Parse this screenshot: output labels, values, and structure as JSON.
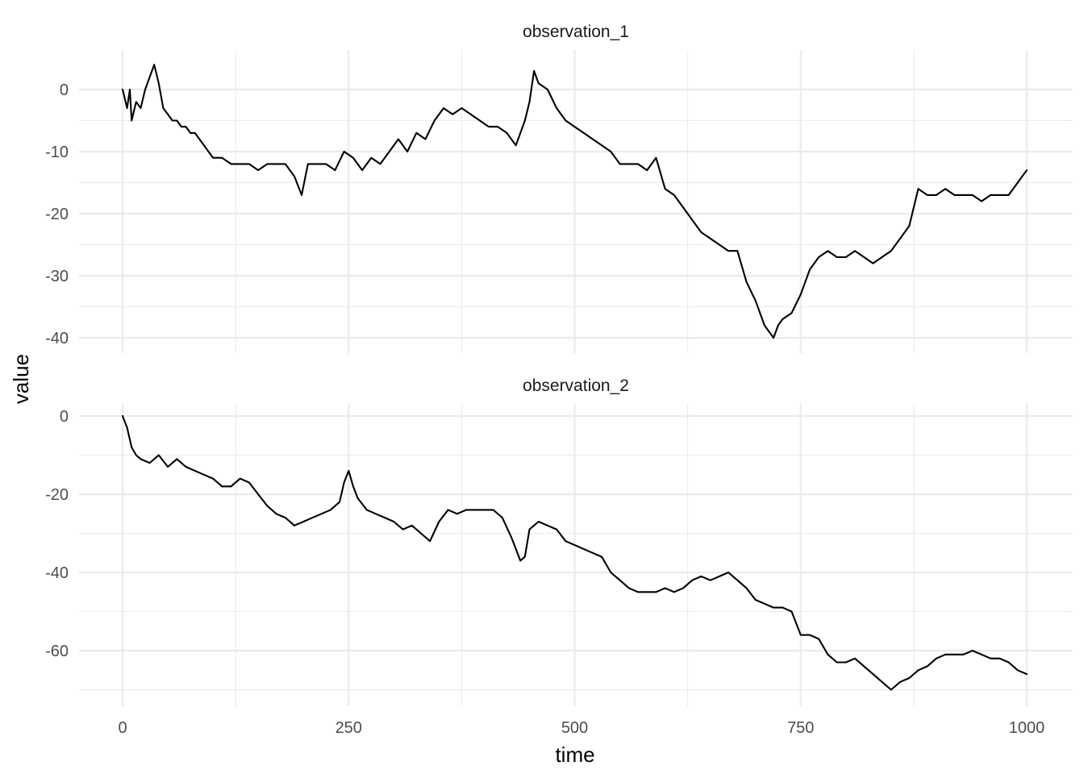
{
  "chart_data": {
    "type": "line",
    "xlabel": "time",
    "ylabel": "value",
    "xlim": [
      0,
      1000
    ],
    "x_ticks": [
      0,
      250,
      500,
      750,
      1000
    ],
    "grid": true,
    "legend": "none",
    "panels": [
      {
        "title": "observation_1",
        "ylim": [
          -42,
          6
        ],
        "y_ticks": [
          0,
          -10,
          -20,
          -30,
          -40
        ],
        "series": [
          {
            "color": "#000000",
            "x": [
              0,
              5,
              8,
              10,
              15,
              20,
              25,
              30,
              35,
              40,
              45,
              50,
              55,
              60,
              65,
              70,
              75,
              80,
              85,
              90,
              100,
              110,
              120,
              130,
              140,
              150,
              160,
              170,
              180,
              190,
              198,
              205,
              215,
              225,
              235,
              245,
              255,
              265,
              275,
              285,
              295,
              305,
              315,
              325,
              335,
              345,
              355,
              365,
              375,
              385,
              395,
              405,
              415,
              425,
              435,
              445,
              450,
              455,
              460,
              470,
              480,
              490,
              500,
              510,
              520,
              530,
              540,
              550,
              560,
              570,
              580,
              590,
              600,
              610,
              620,
              630,
              640,
              650,
              660,
              670,
              680,
              690,
              700,
              710,
              720,
              725,
              730,
              740,
              750,
              760,
              770,
              780,
              790,
              800,
              810,
              820,
              830,
              840,
              850,
              860,
              870,
              880,
              890,
              900,
              910,
              920,
              930,
              940,
              950,
              960,
              970,
              980,
              990,
              1000
            ],
            "y": [
              0,
              -3,
              0,
              -5,
              -2,
              -3,
              0,
              2,
              4,
              1,
              -3,
              -4,
              -5,
              -5,
              -6,
              -6,
              -7,
              -7,
              -8,
              -9,
              -11,
              -11,
              -12,
              -12,
              -12,
              -13,
              -12,
              -12,
              -12,
              -14,
              -17,
              -12,
              -12,
              -12,
              -13,
              -10,
              -11,
              -13,
              -11,
              -12,
              -10,
              -8,
              -10,
              -7,
              -8,
              -5,
              -3,
              -4,
              -3,
              -4,
              -5,
              -6,
              -6,
              -7,
              -9,
              -5,
              -2,
              3,
              1,
              0,
              -3,
              -5,
              -6,
              -7,
              -8,
              -9,
              -10,
              -12,
              -12,
              -12,
              -13,
              -11,
              -16,
              -17,
              -19,
              -21,
              -23,
              -24,
              -25,
              -26,
              -26,
              -31,
              -34,
              -38,
              -40,
              -38,
              -37,
              -36,
              -33,
              -29,
              -27,
              -26,
              -27,
              -27,
              -26,
              -27,
              -28,
              -27,
              -26,
              -24,
              -22,
              -16,
              -17,
              -17,
              -16,
              -17,
              -17,
              -17,
              -18,
              -17,
              -17,
              -17,
              -15,
              -13
            ]
          }
        ]
      },
      {
        "title": "observation_2",
        "ylim": [
          -73,
          3
        ],
        "y_ticks": [
          0,
          -20,
          -40,
          -60
        ],
        "series": [
          {
            "color": "#000000",
            "x": [
              0,
              5,
              10,
              15,
              20,
              30,
              40,
              50,
              60,
              70,
              80,
              90,
              100,
              110,
              120,
              130,
              140,
              150,
              160,
              170,
              180,
              190,
              200,
              210,
              220,
              230,
              240,
              245,
              250,
              255,
              260,
              270,
              280,
              290,
              300,
              310,
              320,
              330,
              340,
              350,
              360,
              370,
              380,
              390,
              400,
              410,
              420,
              430,
              435,
              440,
              445,
              450,
              460,
              470,
              480,
              490,
              500,
              510,
              520,
              530,
              540,
              550,
              560,
              570,
              580,
              590,
              600,
              610,
              620,
              630,
              640,
              650,
              660,
              670,
              680,
              690,
              700,
              710,
              720,
              730,
              740,
              750,
              760,
              770,
              780,
              790,
              800,
              810,
              820,
              830,
              840,
              850,
              860,
              870,
              880,
              890,
              900,
              910,
              920,
              930,
              940,
              950,
              960,
              970,
              980,
              990,
              1000
            ],
            "y": [
              0,
              -3,
              -8,
              -10,
              -11,
              -12,
              -10,
              -13,
              -11,
              -13,
              -14,
              -15,
              -16,
              -18,
              -18,
              -16,
              -17,
              -20,
              -23,
              -25,
              -26,
              -28,
              -27,
              -26,
              -25,
              -24,
              -22,
              -17,
              -14,
              -18,
              -21,
              -24,
              -25,
              -26,
              -27,
              -29,
              -28,
              -30,
              -32,
              -27,
              -24,
              -25,
              -24,
              -24,
              -24,
              -24,
              -26,
              -31,
              -34,
              -37,
              -36,
              -29,
              -27,
              -28,
              -29,
              -32,
              -33,
              -34,
              -35,
              -36,
              -40,
              -42,
              -44,
              -45,
              -45,
              -45,
              -44,
              -45,
              -44,
              -42,
              -41,
              -42,
              -41,
              -40,
              -42,
              -44,
              -47,
              -48,
              -49,
              -49,
              -50,
              -56,
              -56,
              -57,
              -61,
              -63,
              -63,
              -62,
              -64,
              -66,
              -68,
              -70,
              -68,
              -67,
              -65,
              -64,
              -62,
              -61,
              -61,
              -61,
              -60,
              -61,
              -62,
              -62,
              -63,
              -65,
              -66
            ]
          }
        ]
      }
    ]
  }
}
